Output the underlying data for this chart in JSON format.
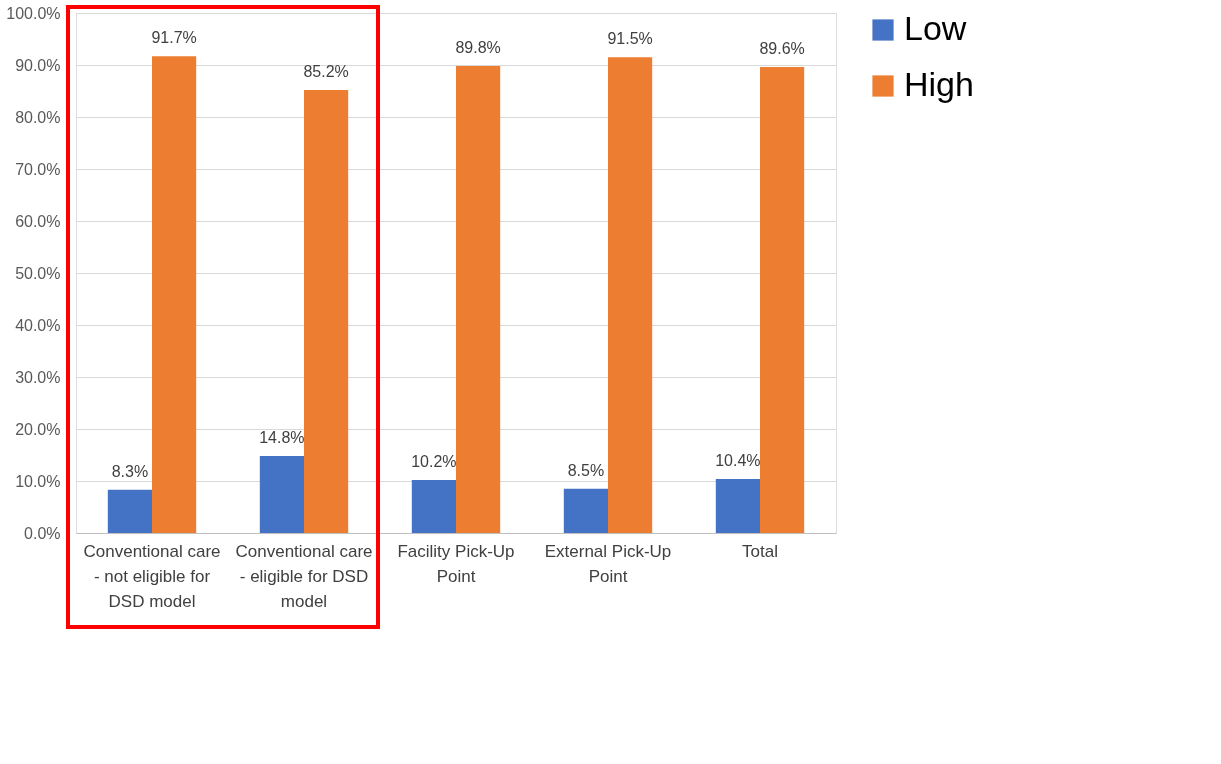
{
  "chart_data": {
    "type": "bar",
    "categories": [
      "Conventional care - not eligible for DSD model",
      "Conventional care - eligible for DSD model",
      "Facility Pick-Up Point",
      "External Pick-Up Point",
      "Total"
    ],
    "series": [
      {
        "name": "Low",
        "color": "#4472c4",
        "values": [
          8.3,
          14.8,
          10.2,
          8.5,
          10.4
        ],
        "value_labels": [
          "8.3%",
          "14.8%",
          "10.2%",
          "8.5%",
          "10.4%"
        ]
      },
      {
        "name": "High",
        "color": "#ed7d31",
        "values": [
          91.7,
          85.2,
          89.8,
          91.5,
          89.6
        ],
        "value_labels": [
          "91.7%",
          "85.2%",
          "89.8%",
          "91.5%",
          "89.6%"
        ]
      }
    ],
    "ylim": [
      0,
      100
    ],
    "yticks": [
      {
        "value": 0,
        "label": "0.0%"
      },
      {
        "value": 10,
        "label": "10.0%"
      },
      {
        "value": 20,
        "label": "20.0%"
      },
      {
        "value": 30,
        "label": "30.0%"
      },
      {
        "value": 40,
        "label": "40.0%"
      },
      {
        "value": 50,
        "label": "50.0%"
      },
      {
        "value": 60,
        "label": "60.0%"
      },
      {
        "value": 70,
        "label": "70.0%"
      },
      {
        "value": 80,
        "label": "80.0%"
      },
      {
        "value": 90,
        "label": "90.0%"
      },
      {
        "value": 100,
        "label": "100.0%"
      }
    ],
    "grid": "y",
    "legend": "right"
  }
}
